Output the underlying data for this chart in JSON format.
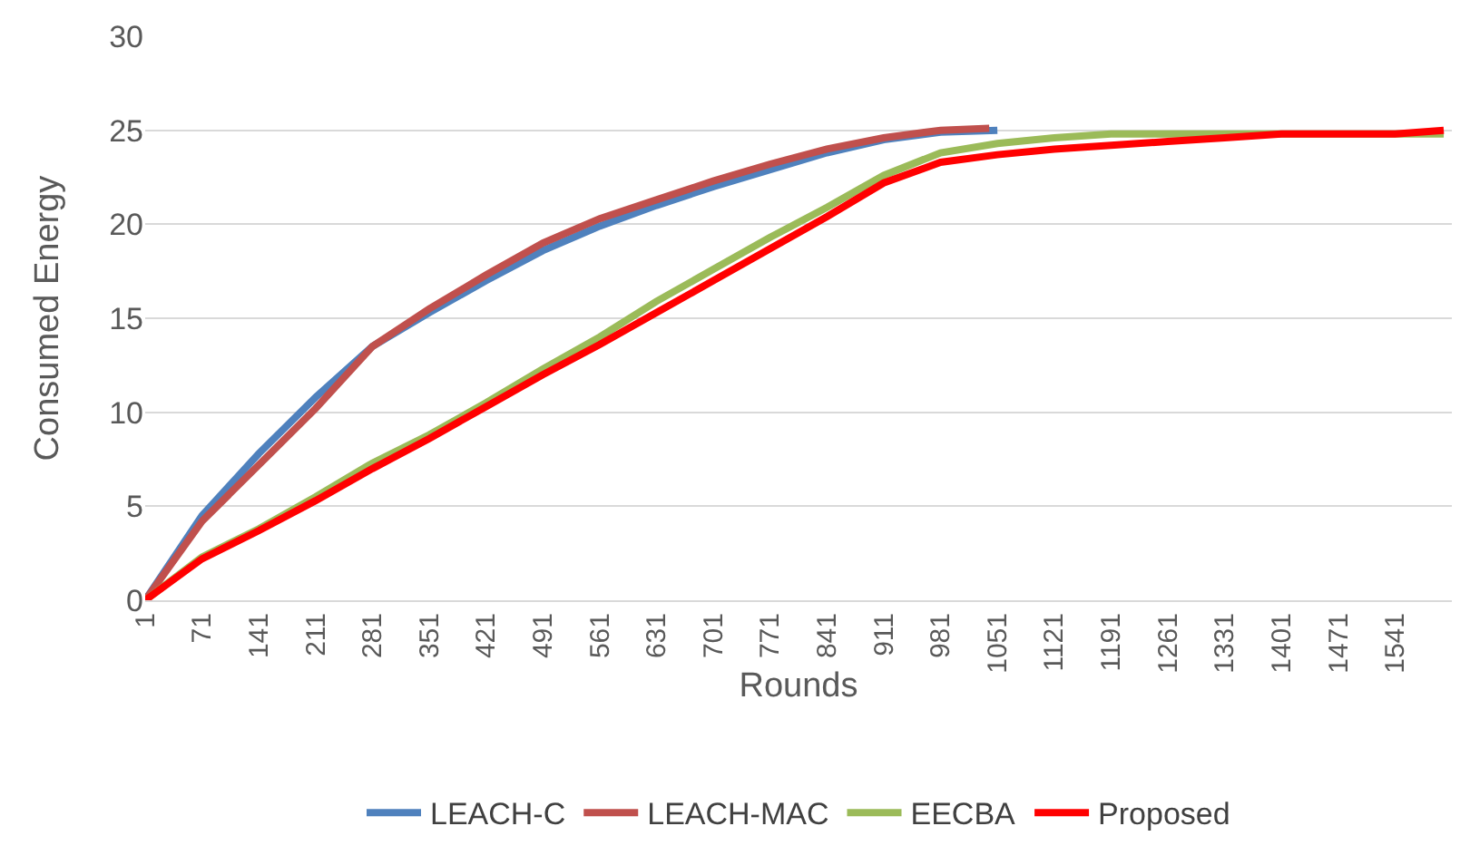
{
  "chart_data": {
    "type": "line",
    "xlabel": "Rounds",
    "ylabel": "Consumed Energy",
    "xlim": [
      1,
      1611
    ],
    "xticks": [
      1,
      71,
      141,
      211,
      281,
      351,
      421,
      491,
      561,
      631,
      701,
      771,
      841,
      911,
      981,
      1051,
      1121,
      1191,
      1261,
      1331,
      1401,
      1471,
      1541
    ],
    "ylim": [
      0,
      30
    ],
    "yticks": [
      0,
      5,
      10,
      15,
      20,
      25,
      30
    ],
    "grid": "y",
    "legend": "bottom",
    "marker": "none",
    "line_style": "solid",
    "series": [
      {
        "name": "LEACH-C",
        "color": "#4f81bd",
        "x": [
          1,
          71,
          141,
          211,
          281,
          351,
          421,
          491,
          561,
          631,
          701,
          771,
          841,
          911,
          981,
          1051
        ],
        "values": [
          0,
          4.5,
          7.8,
          10.8,
          13.5,
          15.3,
          17,
          18.6,
          19.9,
          21,
          22,
          22.9,
          23.8,
          24.5,
          24.9,
          25
        ]
      },
      {
        "name": "LEACH-MAC",
        "color": "#c0504d",
        "x": [
          1,
          71,
          141,
          211,
          281,
          351,
          421,
          491,
          561,
          631,
          701,
          771,
          841,
          911,
          981,
          1041
        ],
        "values": [
          0,
          4.2,
          7.2,
          10.2,
          13.5,
          15.5,
          17.3,
          19,
          20.3,
          21.3,
          22.3,
          23.2,
          24,
          24.6,
          25,
          25.1
        ]
      },
      {
        "name": "EECBA",
        "color": "#9bbb59",
        "x": [
          1,
          71,
          141,
          211,
          281,
          351,
          421,
          491,
          561,
          631,
          701,
          771,
          841,
          911,
          981,
          1051,
          1121,
          1191,
          1261,
          1331,
          1401,
          1471,
          1541,
          1601
        ],
        "values": [
          0,
          2.3,
          3.8,
          5.5,
          7.3,
          8.8,
          10.5,
          12.3,
          14,
          15.9,
          17.6,
          19.3,
          20.9,
          22.6,
          23.8,
          24.3,
          24.6,
          24.8,
          24.8,
          24.8,
          24.8,
          24.8,
          24.8,
          24.8
        ]
      },
      {
        "name": "Proposed",
        "color": "#ff0000",
        "x": [
          1,
          71,
          141,
          211,
          281,
          351,
          421,
          491,
          561,
          631,
          701,
          771,
          841,
          911,
          981,
          1051,
          1121,
          1191,
          1261,
          1331,
          1401,
          1471,
          1541,
          1601
        ],
        "values": [
          0,
          2.2,
          3.7,
          5.3,
          7,
          8.6,
          10.3,
          12,
          13.6,
          15.3,
          17,
          18.7,
          20.4,
          22.2,
          23.3,
          23.7,
          24,
          24.2,
          24.4,
          24.6,
          24.8,
          24.8,
          24.8,
          25
        ]
      }
    ]
  }
}
